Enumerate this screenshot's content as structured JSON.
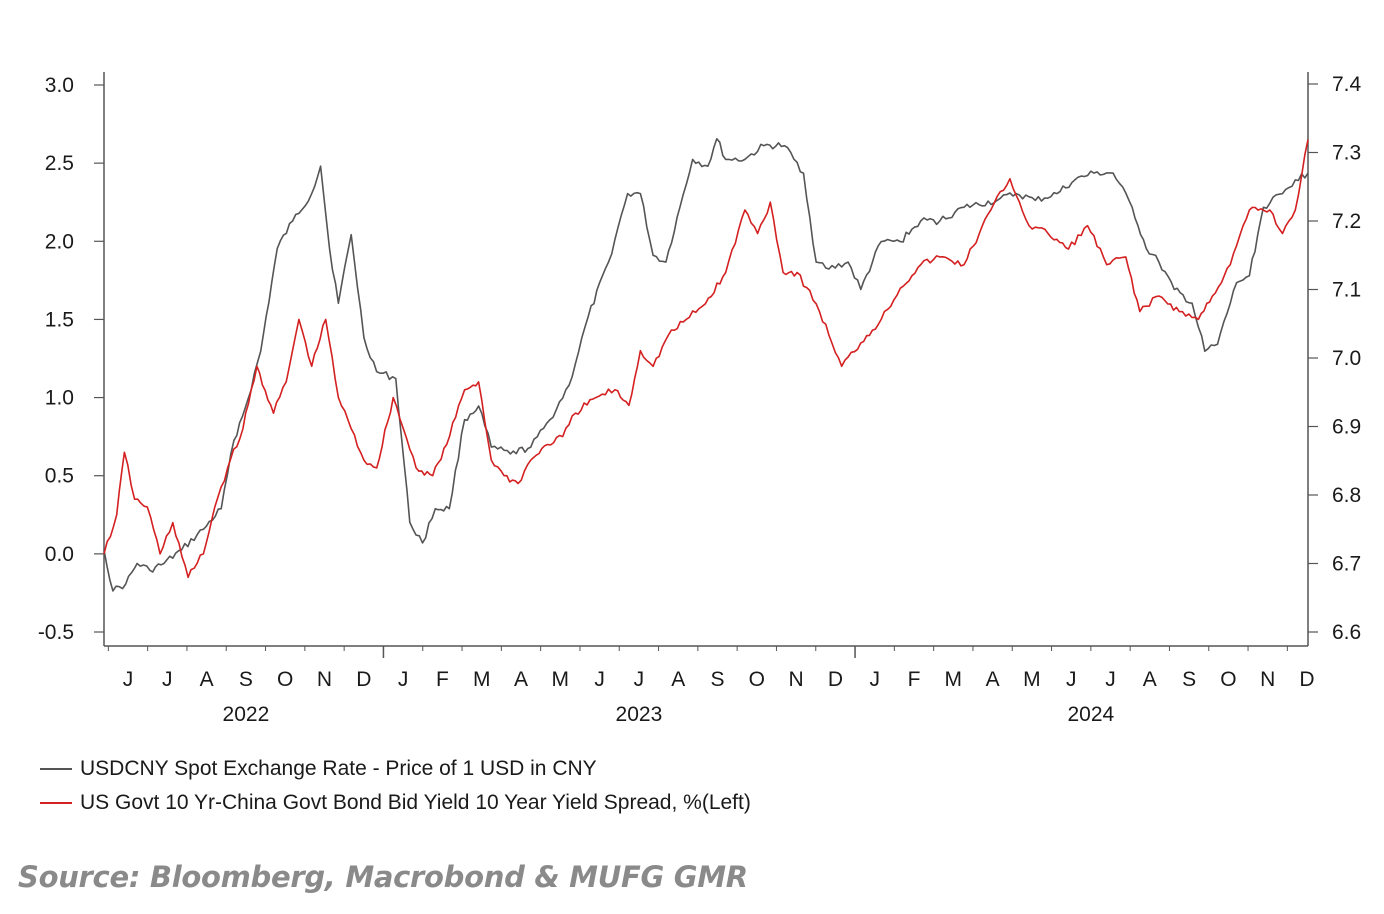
{
  "chart_data": {
    "type": "line",
    "title": "",
    "grid": false,
    "legend_position": "bottom-left",
    "x_axis": {
      "month_labels": [
        "J",
        "J",
        "A",
        "S",
        "O",
        "N",
        "D",
        "J",
        "F",
        "M",
        "A",
        "M",
        "J",
        "J",
        "A",
        "S",
        "O",
        "N",
        "D",
        "J",
        "F",
        "M",
        "A",
        "M",
        "J",
        "J",
        "A",
        "S",
        "O",
        "N",
        "D"
      ],
      "year_labels": [
        "2022",
        "2023",
        "2024"
      ],
      "start": "2022-05-15",
      "end": "2024-12-15"
    },
    "y_left": {
      "range": [
        -0.6,
        3.0
      ],
      "ticks": [
        "3.0",
        "2.5",
        "2.0",
        "1.5",
        "1.0",
        "0.5",
        "0.0",
        "-0.5"
      ]
    },
    "y_right": {
      "range": [
        6.6,
        7.4
      ],
      "ticks": [
        "7.4",
        "7.3",
        "7.2",
        "7.1",
        "7.0",
        "6.9",
        "6.8",
        "6.7",
        "6.6"
      ]
    },
    "series": [
      {
        "name": "USDCNY Spot Exchange Rate - Price of 1 USD in CNY",
        "axis": "right",
        "color": "#555555",
        "points": [
          [
            "2022-05-15",
            6.72
          ],
          [
            "2022-05-22",
            6.66
          ],
          [
            "2022-06-01",
            6.67
          ],
          [
            "2022-06-10",
            6.7
          ],
          [
            "2022-06-20",
            6.69
          ],
          [
            "2022-07-01",
            6.7
          ],
          [
            "2022-07-15",
            6.72
          ],
          [
            "2022-08-01",
            6.75
          ],
          [
            "2022-08-15",
            6.78
          ],
          [
            "2022-08-25",
            6.88
          ],
          [
            "2022-09-05",
            6.94
          ],
          [
            "2022-09-15",
            7.01
          ],
          [
            "2022-09-28",
            7.16
          ],
          [
            "2022-10-10",
            7.2
          ],
          [
            "2022-10-25",
            7.24
          ],
          [
            "2022-11-01",
            7.28
          ],
          [
            "2022-11-08",
            7.16
          ],
          [
            "2022-11-15",
            7.08
          ],
          [
            "2022-11-25",
            7.18
          ],
          [
            "2022-12-05",
            7.03
          ],
          [
            "2022-12-15",
            6.98
          ],
          [
            "2022-12-30",
            6.97
          ],
          [
            "2023-01-10",
            6.76
          ],
          [
            "2023-01-20",
            6.73
          ],
          [
            "2023-01-30",
            6.78
          ],
          [
            "2023-02-10",
            6.78
          ],
          [
            "2023-02-22",
            6.91
          ],
          [
            "2023-03-05",
            6.93
          ],
          [
            "2023-03-15",
            6.87
          ],
          [
            "2023-03-30",
            6.86
          ],
          [
            "2023-04-15",
            6.87
          ],
          [
            "2023-04-30",
            6.91
          ],
          [
            "2023-05-15",
            6.96
          ],
          [
            "2023-05-30",
            7.06
          ],
          [
            "2023-06-15",
            7.14
          ],
          [
            "2023-06-30",
            7.24
          ],
          [
            "2023-07-10",
            7.24
          ],
          [
            "2023-07-20",
            7.15
          ],
          [
            "2023-07-30",
            7.14
          ],
          [
            "2023-08-10",
            7.22
          ],
          [
            "2023-08-20",
            7.29
          ],
          [
            "2023-09-01",
            7.28
          ],
          [
            "2023-09-08",
            7.32
          ],
          [
            "2023-09-15",
            7.29
          ],
          [
            "2023-09-30",
            7.29
          ],
          [
            "2023-10-15",
            7.31
          ],
          [
            "2023-10-31",
            7.31
          ],
          [
            "2023-11-15",
            7.27
          ],
          [
            "2023-11-25",
            7.14
          ],
          [
            "2023-12-05",
            7.13
          ],
          [
            "2023-12-20",
            7.14
          ],
          [
            "2023-12-30",
            7.1
          ],
          [
            "2024-01-15",
            7.17
          ],
          [
            "2024-01-30",
            7.17
          ],
          [
            "2024-02-15",
            7.2
          ],
          [
            "2024-03-01",
            7.2
          ],
          [
            "2024-03-20",
            7.22
          ],
          [
            "2024-04-15",
            7.23
          ],
          [
            "2024-04-30",
            7.24
          ],
          [
            "2024-05-15",
            7.23
          ],
          [
            "2024-06-01",
            7.24
          ],
          [
            "2024-06-15",
            7.26
          ],
          [
            "2024-06-30",
            7.27
          ],
          [
            "2024-07-15",
            7.27
          ],
          [
            "2024-07-30",
            7.22
          ],
          [
            "2024-08-10",
            7.16
          ],
          [
            "2024-08-20",
            7.14
          ],
          [
            "2024-09-01",
            7.1
          ],
          [
            "2024-09-15",
            7.08
          ],
          [
            "2024-09-25",
            7.01
          ],
          [
            "2024-10-05",
            7.02
          ],
          [
            "2024-10-20",
            7.11
          ],
          [
            "2024-10-30",
            7.12
          ],
          [
            "2024-11-10",
            7.22
          ],
          [
            "2024-11-25",
            7.24
          ],
          [
            "2024-12-05",
            7.26
          ],
          [
            "2024-12-15",
            7.27
          ]
        ]
      },
      {
        "name": "US Govt 10 Yr-China Govt Bond Bid Yield 10 Year Yield Spread, %(Left)",
        "axis": "left",
        "color": "#d42020",
        "points": [
          [
            "2022-05-15",
            0.0
          ],
          [
            "2022-05-25",
            0.25
          ],
          [
            "2022-05-31",
            0.65
          ],
          [
            "2022-06-08",
            0.35
          ],
          [
            "2022-06-18",
            0.3
          ],
          [
            "2022-06-28",
            0.0
          ],
          [
            "2022-07-08",
            0.2
          ],
          [
            "2022-07-20",
            -0.15
          ],
          [
            "2022-08-01",
            0.0
          ],
          [
            "2022-08-10",
            0.3
          ],
          [
            "2022-08-20",
            0.55
          ],
          [
            "2022-09-01",
            0.8
          ],
          [
            "2022-09-12",
            1.2
          ],
          [
            "2022-09-25",
            0.9
          ],
          [
            "2022-10-05",
            1.1
          ],
          [
            "2022-10-15",
            1.5
          ],
          [
            "2022-10-25",
            1.2
          ],
          [
            "2022-11-05",
            1.5
          ],
          [
            "2022-11-15",
            1.0
          ],
          [
            "2022-11-25",
            0.8
          ],
          [
            "2022-12-05",
            0.6
          ],
          [
            "2022-12-15",
            0.55
          ],
          [
            "2022-12-28",
            1.0
          ],
          [
            "2023-01-05",
            0.8
          ],
          [
            "2023-01-15",
            0.55
          ],
          [
            "2023-01-28",
            0.5
          ],
          [
            "2023-02-08",
            0.7
          ],
          [
            "2023-02-22",
            1.05
          ],
          [
            "2023-03-05",
            1.1
          ],
          [
            "2023-03-15",
            0.6
          ],
          [
            "2023-03-25",
            0.5
          ],
          [
            "2023-04-05",
            0.45
          ],
          [
            "2023-04-15",
            0.6
          ],
          [
            "2023-04-28",
            0.7
          ],
          [
            "2023-05-10",
            0.75
          ],
          [
            "2023-05-20",
            0.9
          ],
          [
            "2023-06-05",
            1.0
          ],
          [
            "2023-06-20",
            1.05
          ],
          [
            "2023-07-01",
            0.95
          ],
          [
            "2023-07-10",
            1.3
          ],
          [
            "2023-07-20",
            1.2
          ],
          [
            "2023-08-01",
            1.4
          ],
          [
            "2023-08-15",
            1.5
          ],
          [
            "2023-08-30",
            1.6
          ],
          [
            "2023-09-15",
            1.8
          ],
          [
            "2023-09-30",
            2.2
          ],
          [
            "2023-10-10",
            2.05
          ],
          [
            "2023-10-20",
            2.25
          ],
          [
            "2023-10-30",
            1.8
          ],
          [
            "2023-11-10",
            1.8
          ],
          [
            "2023-11-25",
            1.6
          ],
          [
            "2023-12-05",
            1.4
          ],
          [
            "2023-12-15",
            1.2
          ],
          [
            "2023-12-30",
            1.35
          ],
          [
            "2024-01-15",
            1.5
          ],
          [
            "2024-01-30",
            1.7
          ],
          [
            "2024-02-15",
            1.85
          ],
          [
            "2024-03-01",
            1.9
          ],
          [
            "2024-03-20",
            1.85
          ],
          [
            "2024-04-01",
            2.05
          ],
          [
            "2024-04-10",
            2.2
          ],
          [
            "2024-04-25",
            2.4
          ],
          [
            "2024-05-10",
            2.1
          ],
          [
            "2024-05-25",
            2.05
          ],
          [
            "2024-06-10",
            1.95
          ],
          [
            "2024-06-25",
            2.1
          ],
          [
            "2024-07-10",
            1.85
          ],
          [
            "2024-07-25",
            1.9
          ],
          [
            "2024-08-05",
            1.55
          ],
          [
            "2024-08-20",
            1.65
          ],
          [
            "2024-09-05",
            1.55
          ],
          [
            "2024-09-20",
            1.5
          ],
          [
            "2024-10-01",
            1.65
          ],
          [
            "2024-10-15",
            1.85
          ],
          [
            "2024-10-30",
            2.2
          ],
          [
            "2024-11-15",
            2.2
          ],
          [
            "2024-11-25",
            2.05
          ],
          [
            "2024-12-05",
            2.2
          ],
          [
            "2024-12-15",
            2.65
          ]
        ]
      }
    ]
  },
  "legend": [
    {
      "label": "USDCNY Spot Exchange Rate - Price of 1 USD in CNY",
      "color": "#555555"
    },
    {
      "label": "US Govt 10 Yr-China Govt Bond Bid Yield 10 Year Yield Spread, %(Left)",
      "color": "#d42020"
    }
  ],
  "source": "Source: Bloomberg, Macrobond & MUFG GMR"
}
